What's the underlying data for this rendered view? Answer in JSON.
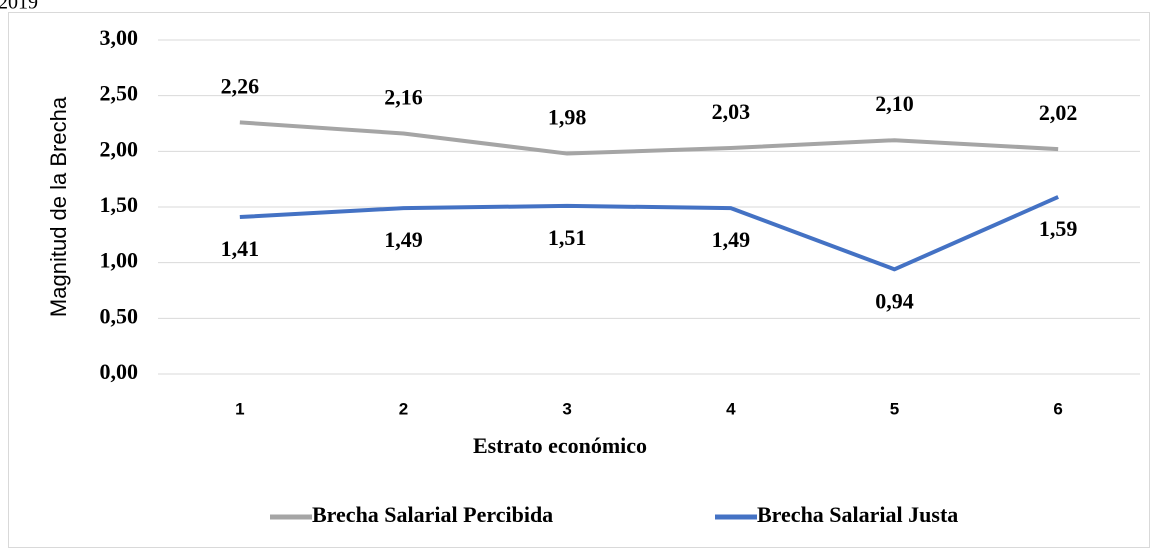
{
  "header_text": "2019",
  "chart_data": {
    "type": "line",
    "x_label": "Estrato económico",
    "y_label": "Magnitud  de la Brecha",
    "categories": [
      "1",
      "2",
      "3",
      "4",
      "5",
      "6"
    ],
    "series": [
      {
        "name": "Brecha Salarial Percibida",
        "color": "#a5a5a5",
        "values": [
          2.26,
          2.16,
          1.98,
          2.03,
          2.1,
          2.02
        ],
        "value_labels": [
          "2,26",
          "2,16",
          "1,98",
          "2,03",
          "2,10",
          "2,02"
        ],
        "label_position": "above"
      },
      {
        "name": "Brecha Salarial Justa",
        "color": "#4472c4",
        "values": [
          1.41,
          1.49,
          1.51,
          1.49,
          0.94,
          1.59
        ],
        "value_labels": [
          "1,41",
          "1,49",
          "1,51",
          "1,49",
          "0,94",
          "1,59"
        ],
        "label_position": "below"
      }
    ],
    "ylim": [
      0,
      3
    ],
    "yticks": [
      {
        "value": 0,
        "label": "0,00"
      },
      {
        "value": 0.5,
        "label": "0,50"
      },
      {
        "value": 1,
        "label": "1,00"
      },
      {
        "value": 1.5,
        "label": "1,50"
      },
      {
        "value": 2,
        "label": "2,00"
      },
      {
        "value": 2.5,
        "label": "2,50"
      },
      {
        "value": 3,
        "label": "3,00"
      }
    ],
    "grid": true,
    "legend": "bottom"
  }
}
